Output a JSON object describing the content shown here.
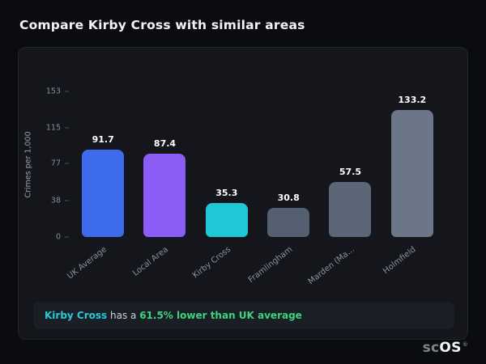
{
  "header": {
    "title": "Compare Kirby Cross with similar areas"
  },
  "chart_data": {
    "type": "bar",
    "title": "",
    "xlabel": "",
    "ylabel": "Crimes per 1,000",
    "ylim": [
      0,
      153
    ],
    "yticks": [
      0,
      38,
      77,
      115,
      153
    ],
    "grid": false,
    "legend": false,
    "categories": [
      "UK Average",
      "Local Area",
      "Kirby Cross",
      "Framlingham",
      "Marden (Ma...",
      "Holmfield"
    ],
    "series": [
      {
        "name": "Crimes per 1,000",
        "values": [
          91.7,
          87.4,
          35.3,
          30.8,
          57.5,
          133.2
        ]
      }
    ],
    "bar_colors": [
      "#3d6bec",
      "#8b5cf6",
      "#20c7d9",
      "#545f71",
      "#5b6678",
      "#6b7689"
    ]
  },
  "note": {
    "area": "Kirby Cross",
    "connector": " has a ",
    "stat": "61.5% lower than UK average"
  },
  "logo": {
    "prefix": "sc",
    "suffix": "OS",
    "registered": "®"
  },
  "colors": {
    "background": "#0b0c10",
    "card": "#14161c",
    "note_box": "#1a1e25",
    "accent_blue": "#3d6bec",
    "accent_purple": "#8b5cf6",
    "accent_cyan": "#20c7d9",
    "muted_bar": "#5b6678",
    "green": "#3ed47e"
  }
}
